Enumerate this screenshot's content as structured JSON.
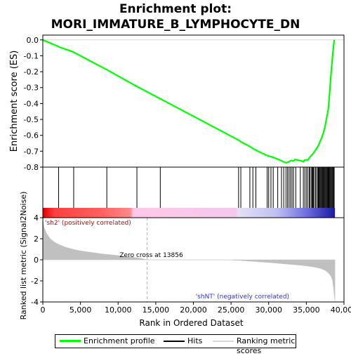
{
  "title_lines": [
    "Enrichment plot:",
    "MORI_IMMATURE_B_LYMPHOCYTE_DN"
  ],
  "colors": {
    "profile": "#00ff00",
    "hits": "#000000",
    "metric": "#c0c0c0",
    "zero_cross_line": "#b0b0b0",
    "pos_label": "#cc0000",
    "neg_label": "#3333cc"
  },
  "chart_data": {
    "type": "line",
    "panels": [
      {
        "name": "enrichment",
        "ylabel": "Enrichment score (ES)",
        "ylim": [
          -0.8,
          0.03
        ],
        "yticks": [
          0.0,
          -0.1,
          -0.2,
          -0.3,
          -0.4,
          -0.5,
          -0.6,
          -0.7,
          -0.8
        ],
        "ytick_labels": [
          "0.0",
          "-0.1",
          "-0.2",
          "-0.3",
          "-0.4",
          "-0.5",
          "-0.6",
          "-0.7",
          "-0.8"
        ],
        "x": [
          0,
          2000,
          2200,
          4000,
          4200,
          8400,
          8600,
          12400,
          15600,
          26000,
          26300,
          27500,
          28000,
          28800,
          29700,
          30000,
          30200,
          30500,
          31200,
          31700,
          32100,
          32400,
          32700,
          33000,
          33300,
          33500,
          34100,
          34600,
          34800,
          35200,
          35500,
          35800,
          36200,
          36600,
          37000,
          37300,
          37500,
          37700,
          37900,
          38100,
          38300,
          38500,
          38700
        ],
        "y": [
          0.0,
          -0.04,
          -0.045,
          -0.075,
          -0.08,
          -0.185,
          -0.19,
          -0.29,
          -0.37,
          -0.63,
          -0.64,
          -0.67,
          -0.685,
          -0.705,
          -0.725,
          -0.73,
          -0.733,
          -0.737,
          -0.75,
          -0.76,
          -0.77,
          -0.772,
          -0.765,
          -0.758,
          -0.762,
          -0.752,
          -0.758,
          -0.765,
          -0.755,
          -0.755,
          -0.735,
          -0.72,
          -0.695,
          -0.665,
          -0.62,
          -0.58,
          -0.54,
          -0.49,
          -0.44,
          -0.33,
          -0.2,
          -0.09,
          0.0
        ]
      },
      {
        "name": "hits",
        "hit_positions": [
          2100,
          4100,
          8500,
          12500,
          15600,
          26000,
          26300,
          27500,
          27900,
          28300,
          29800,
          30000,
          30300,
          30600,
          31200,
          31700,
          32000,
          32300,
          32500,
          32700,
          32900,
          33100,
          33300,
          33600,
          34200,
          34600,
          34800,
          35000,
          35200,
          35400,
          35500,
          35700,
          35800,
          35900,
          36000,
          36200,
          36300,
          36500,
          36600,
          36700,
          36800,
          36900,
          37000,
          37100,
          37200,
          37300,
          37400,
          37500,
          37600,
          37700,
          37800,
          37900,
          38000,
          38100,
          38200,
          38300,
          38400,
          38500,
          38600,
          38700
        ]
      },
      {
        "name": "ranked_metric",
        "ylabel": "Ranked list metric (Signal2Noise)",
        "ylim": [
          -4,
          4
        ],
        "yticks": [
          4,
          2,
          0,
          -2,
          -4
        ],
        "ytick_labels": [
          "4",
          "2",
          "0",
          "-2",
          "-4"
        ],
        "x": [
          0,
          200,
          500,
          1000,
          1500,
          2000,
          3000,
          4000,
          5000,
          6000,
          7000,
          8000,
          9000,
          10000,
          11000,
          12000,
          13000,
          13856,
          16000,
          20000,
          24000,
          26000,
          28000,
          30000,
          32000,
          34000,
          35000,
          36000,
          36500,
          37000,
          37500,
          38000,
          38300,
          38500,
          38600,
          38700,
          38800
        ],
        "values": [
          3.9,
          3.0,
          2.5,
          2.0,
          1.7,
          1.5,
          1.2,
          1.0,
          0.85,
          0.75,
          0.65,
          0.55,
          0.48,
          0.4,
          0.32,
          0.24,
          0.14,
          0.0,
          0.0,
          0.0,
          0.0,
          -0.05,
          -0.15,
          -0.25,
          -0.38,
          -0.5,
          -0.58,
          -0.68,
          -0.75,
          -0.85,
          -1.0,
          -1.3,
          -1.6,
          -2.0,
          -2.6,
          -3.3,
          -3.9
        ],
        "zero_cross_label": "Zero cross at 13856",
        "zero_cross_x": 13856,
        "pos_label": "'sh2' (positively correlated)",
        "neg_label": "'shNT' (negatively correlated)"
      }
    ],
    "xlabel": "Rank in Ordered Dataset",
    "xlim": [
      0,
      40000
    ],
    "xticks": [
      0,
      5000,
      10000,
      15000,
      20000,
      25000,
      30000,
      35000,
      40000
    ],
    "xtick_labels": [
      "0",
      "5,000",
      "10,000",
      "15,000",
      "20,000",
      "25,000",
      "30,000",
      "35,000",
      "40,000"
    ],
    "n_genes": 38800
  },
  "legend": {
    "items": [
      "Enrichment profile",
      "Hits",
      "Ranking metric scores"
    ],
    "placement": "bottom"
  }
}
